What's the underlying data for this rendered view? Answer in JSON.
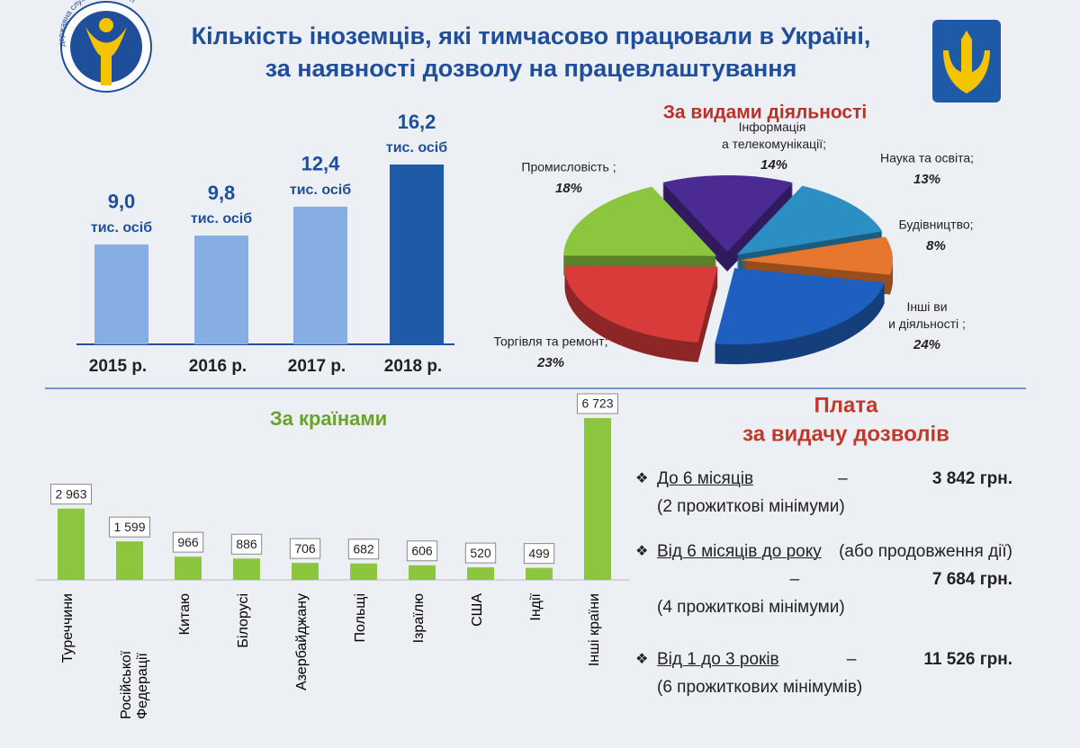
{
  "header": {
    "title_lines": [
      "Кількість іноземців, які тимчасово працювали в Україні,",
      "за наявності дозволу на працевлаштування"
    ],
    "logo_text": "державна служба зайнятості"
  },
  "chart_data": [
    {
      "type": "bar",
      "categories": [
        "2015 р.",
        "2016 р.",
        "2017 р.",
        "2018 р."
      ],
      "values": [
        9.0,
        9.8,
        12.4,
        16.2
      ],
      "value_labels": [
        "9,0",
        "9,8",
        "12,4",
        "16,2"
      ],
      "unit": "тис. осіб",
      "colors": [
        "#86aee3",
        "#86aee3",
        "#86aee3",
        "#1e5aa8"
      ]
    },
    {
      "type": "pie",
      "title": "За видами діяльності",
      "categories": [
        "Інформація та телекомунікації;",
        "Наука та освіта;",
        "Будівництво;",
        "Інші види діяльності ;",
        "Торгівля та ремонт;",
        "Промисловість ;"
      ],
      "values": [
        14,
        13,
        8,
        24,
        23,
        18
      ],
      "value_labels": [
        "14%",
        "13%",
        "8%",
        "24%",
        "23%",
        "18%"
      ],
      "colors": [
        "#4b2a91",
        "#2b8fc4",
        "#e8772e",
        "#1f5fbf",
        "#d93a3a",
        "#8cc63f"
      ]
    },
    {
      "type": "bar",
      "title": "За країнами",
      "categories": [
        "Туреччини",
        "Російської Федерації",
        "Китаю",
        "Білорусі",
        "Азербайджану",
        "Польщі",
        "Ізраїлю",
        "США",
        "Індії",
        "Інші країни"
      ],
      "values": [
        2963,
        1599,
        966,
        886,
        706,
        682,
        606,
        520,
        499,
        6723
      ],
      "value_labels": [
        "2 963",
        "1 599",
        "966",
        "886",
        "706",
        "682",
        "606",
        "520",
        "499",
        "6 723"
      ],
      "color": "#8cc63f"
    }
  ],
  "fees": {
    "title_lines": [
      "Плата",
      "за видачу дозволів"
    ],
    "bullet": "❖",
    "separator": "–",
    "items": [
      {
        "period": "До 6 місяців",
        "amount": "3 842 грн.",
        "note": "(2 прожиткові мінімуми)"
      },
      {
        "period": "Від 6 місяців до року",
        "extra": "(або продовження дії)",
        "amount": "7 684 грн.",
        "note": "(4 прожиткові мінімуми)"
      },
      {
        "period": "Від 1 до 3 років",
        "amount": "11 526 грн.",
        "note": "(6 прожиткових мінімумів)"
      }
    ]
  }
}
